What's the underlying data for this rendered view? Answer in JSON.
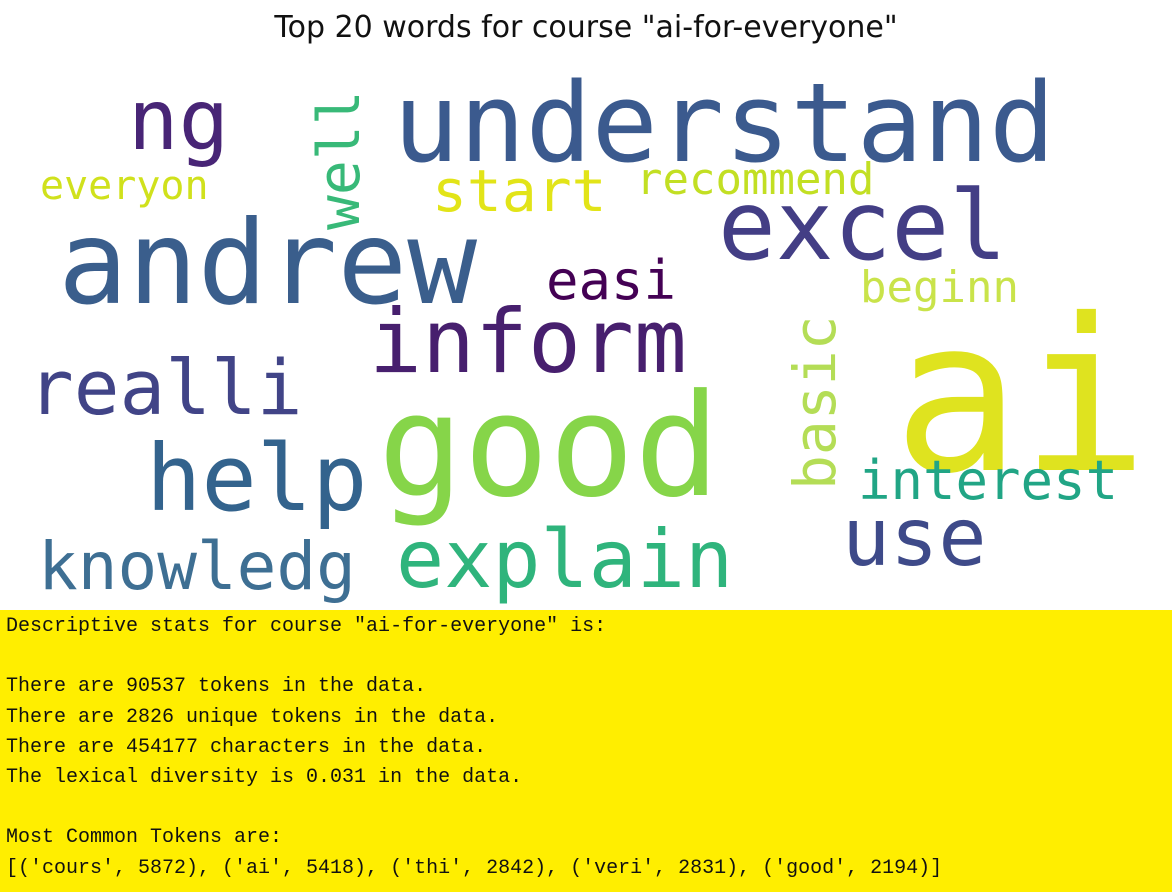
{
  "figure": {
    "title": "Top 20 words for course \"ai-for-everyone\""
  },
  "wordcloud": {
    "words": [
      {
        "text": "ai",
        "color": "#dfe31f"
      },
      {
        "text": "good",
        "color": "#86d549"
      },
      {
        "text": "understand",
        "color": "#3b5a8e"
      },
      {
        "text": "andrew",
        "color": "#3a5e8c"
      },
      {
        "text": "excel",
        "color": "#433e85"
      },
      {
        "text": "help",
        "color": "#33638d"
      },
      {
        "text": "inform",
        "color": "#471f6e"
      },
      {
        "text": "explain",
        "color": "#2fb47c"
      },
      {
        "text": "realli",
        "color": "#414487"
      },
      {
        "text": "use",
        "color": "#3e4a89"
      },
      {
        "text": "knowledg",
        "color": "#3e6f93"
      },
      {
        "text": "ng",
        "color": "#482576"
      },
      {
        "text": "interest",
        "color": "#21a585"
      },
      {
        "text": "start",
        "color": "#e2e418"
      },
      {
        "text": "easi",
        "color": "#440154"
      },
      {
        "text": "basic",
        "color": "#b4dd56"
      },
      {
        "text": "well",
        "color": "#38b978"
      },
      {
        "text": "recommend",
        "color": "#c2df23"
      },
      {
        "text": "beginn",
        "color": "#c9e34a"
      },
      {
        "text": "everyon",
        "color": "#d0e11c"
      }
    ]
  },
  "output": {
    "lines": [
      "Descriptive stats for course \"ai-for-everyone\" is:",
      "",
      "There are 90537 tokens in the data.",
      "There are 2826 unique tokens in the data.",
      "There are 454177 characters in the data.",
      "The lexical diversity is 0.031 in the data.",
      "",
      "Most Common Tokens are:",
      "[('cours', 5872), ('ai', 5418), ('thi', 2842), ('veri', 2831), ('good', 2194)]"
    ]
  }
}
